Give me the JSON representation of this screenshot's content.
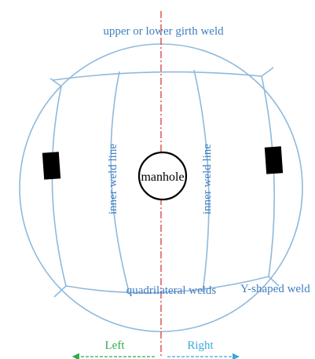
{
  "colors": {
    "weld_line": "#8fb9dc",
    "label_text": "#3f7ebf",
    "center_line": "#d93a3a",
    "manhole": "#000000",
    "pad": "#000000",
    "left_arrow": "#2eaa4a",
    "right_arrow": "#3aa9dc",
    "background": "#ffffff"
  },
  "labels": {
    "girth_weld": "upper or lower girth weld",
    "inner_weld_left": "inner weld line",
    "inner_weld_right": "inner weld line",
    "manhole": "manhole",
    "quadrilateral_welds": "quadrilateral welds",
    "y_shaped_weld": "Y-shaped weld",
    "left": "Left",
    "right": "Right"
  }
}
